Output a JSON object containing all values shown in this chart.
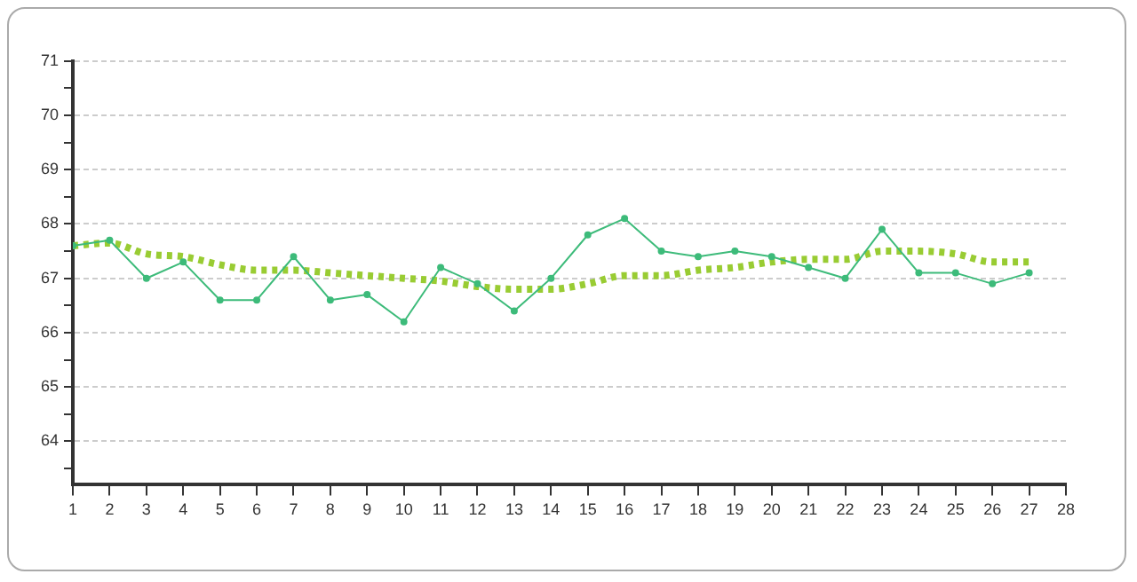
{
  "chart_data": {
    "type": "line",
    "x": [
      1,
      2,
      3,
      4,
      5,
      6,
      7,
      8,
      9,
      10,
      11,
      12,
      13,
      14,
      15,
      16,
      17,
      18,
      19,
      20,
      21,
      22,
      23,
      24,
      25,
      26,
      27
    ],
    "series": [
      {
        "color": "#3dbb7a",
        "marker": "circle",
        "line_style": "solid",
        "values": [
          67.6,
          67.7,
          67.0,
          67.3,
          66.6,
          66.6,
          67.4,
          66.6,
          66.7,
          66.2,
          67.2,
          66.9,
          66.4,
          67.0,
          67.8,
          68.1,
          67.5,
          67.4,
          67.5,
          67.4,
          67.2,
          67.0,
          67.9,
          67.1,
          67.1,
          66.9,
          67.1
        ]
      },
      {
        "color": "#99cc33",
        "marker": "none",
        "line_style": "dotted",
        "values": [
          67.6,
          67.65,
          67.45,
          67.4,
          67.25,
          67.15,
          67.15,
          67.1,
          67.05,
          67.0,
          66.95,
          66.85,
          66.8,
          66.8,
          66.9,
          67.05,
          67.05,
          67.15,
          67.2,
          67.3,
          67.35,
          67.35,
          67.5,
          67.5,
          67.45,
          67.3,
          67.3
        ]
      }
    ],
    "xlim": [
      1,
      28
    ],
    "xticks": [
      1,
      2,
      3,
      4,
      5,
      6,
      7,
      8,
      9,
      10,
      11,
      12,
      13,
      14,
      15,
      16,
      17,
      18,
      19,
      20,
      21,
      22,
      23,
      24,
      25,
      26,
      27,
      28
    ],
    "ylim": [
      63.2,
      71
    ],
    "yticks": [
      {
        "value": 63.5,
        "label": null
      },
      64,
      {
        "value": 64.5,
        "label": null
      },
      65,
      {
        "value": 65.5,
        "label": null
      },
      66,
      {
        "value": 66.5,
        "label": null
      },
      67,
      {
        "value": 67.5,
        "label": null
      },
      68,
      {
        "value": 68.5,
        "label": null
      },
      69,
      {
        "value": 69.5,
        "label": null
      },
      70,
      {
        "value": 70.5,
        "label": null
      },
      71
    ],
    "grid": "y",
    "legend": false
  }
}
